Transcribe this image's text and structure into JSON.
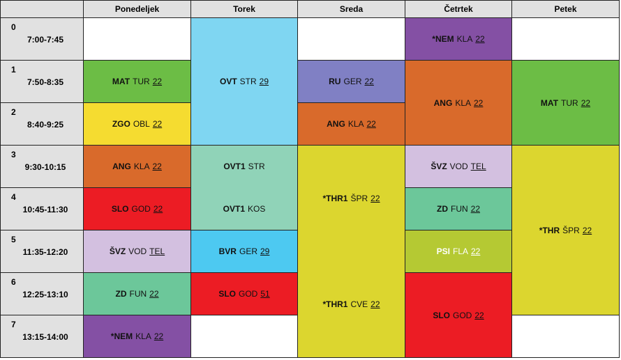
{
  "days": [
    "Ponedeljek",
    "Torek",
    "Sreda",
    "Četrtek",
    "Petek"
  ],
  "periods": [
    {
      "num": "0",
      "time": "7:00-7:45"
    },
    {
      "num": "1",
      "time": "7:50-8:35"
    },
    {
      "num": "2",
      "time": "8:40-9:25"
    },
    {
      "num": "3",
      "time": "9:30-10:15"
    },
    {
      "num": "4",
      "time": "10:45-11:30"
    },
    {
      "num": "5",
      "time": "11:35-12:20"
    },
    {
      "num": "6",
      "time": "12:25-13:10"
    },
    {
      "num": "7",
      "time": "13:15-14:00"
    }
  ],
  "colors": {
    "green": "#6cbd45",
    "yellow": "#f5dc30",
    "orange": "#d96a2b",
    "red": "#ec1c24",
    "lavender": "#d3c0e0",
    "mint": "#6cc79a",
    "purple": "#8450a4",
    "sky": "#7fd6f2",
    "aqua": "#90d3b8",
    "blue": "#4dc9f1",
    "periwinkle": "#8080c4",
    "olive_yellow": "#dcd62f",
    "lime": "#b5c933",
    "header_gray": "#e1e1e1"
  },
  "lessons": {
    "mon_1": {
      "subject": "MAT",
      "teacher": "TUR",
      "room": "22"
    },
    "mon_2": {
      "subject": "ZGO",
      "teacher": "OBL",
      "room": "22"
    },
    "mon_3": {
      "subject": "ANG",
      "teacher": "KLA",
      "room": "22"
    },
    "mon_4": {
      "subject": "SLO",
      "teacher": "GOD",
      "room": "22"
    },
    "mon_5": {
      "subject": "ŠVZ",
      "teacher": "VOD",
      "room": "TEL"
    },
    "mon_6": {
      "subject": "ZD",
      "teacher": "FUN",
      "room": "22"
    },
    "mon_7": {
      "subject": "*NEM",
      "teacher": "KLA",
      "room": "22"
    },
    "tue_0_2": {
      "subject": "OVT",
      "teacher": "STR",
      "room": "29"
    },
    "tue_3_4": [
      {
        "subject": "OVT1",
        "teacher": "STR"
      },
      {
        "subject": "OVT1",
        "teacher": "KOS"
      }
    ],
    "tue_5": {
      "subject": "BVR",
      "teacher": "GER",
      "room": "29"
    },
    "tue_6": {
      "subject": "SLO",
      "teacher": "GOD",
      "room": "51"
    },
    "wed_1": {
      "subject": "RU",
      "teacher": "GER",
      "room": "22"
    },
    "wed_2": {
      "subject": "ANG",
      "teacher": "KLA",
      "room": "22"
    },
    "wed_3_7": [
      {
        "subject": "*THR1",
        "teacher": "ŠPR",
        "room": "22"
      },
      {
        "subject": "*THR1",
        "teacher": "CVE",
        "room": "22"
      }
    ],
    "thu_0": {
      "subject": "*NEM",
      "teacher": "KLA",
      "room": "22"
    },
    "thu_1_2": {
      "subject": "ANG",
      "teacher": "KLA",
      "room": "22"
    },
    "thu_3": {
      "subject": "ŠVZ",
      "teacher": "VOD",
      "room": "TEL"
    },
    "thu_4": {
      "subject": "ZD",
      "teacher": "FUN",
      "room": "22"
    },
    "thu_5": {
      "subject": "PSI",
      "teacher": "FLA",
      "room": "22"
    },
    "thu_6_7": {
      "subject": "SLO",
      "teacher": "GOD",
      "room": "22"
    },
    "fri_1_2": {
      "subject": "MAT",
      "teacher": "TUR",
      "room": "22"
    },
    "fri_3_6": {
      "subject": "*THR",
      "teacher": "ŠPR",
      "room": "22"
    }
  }
}
